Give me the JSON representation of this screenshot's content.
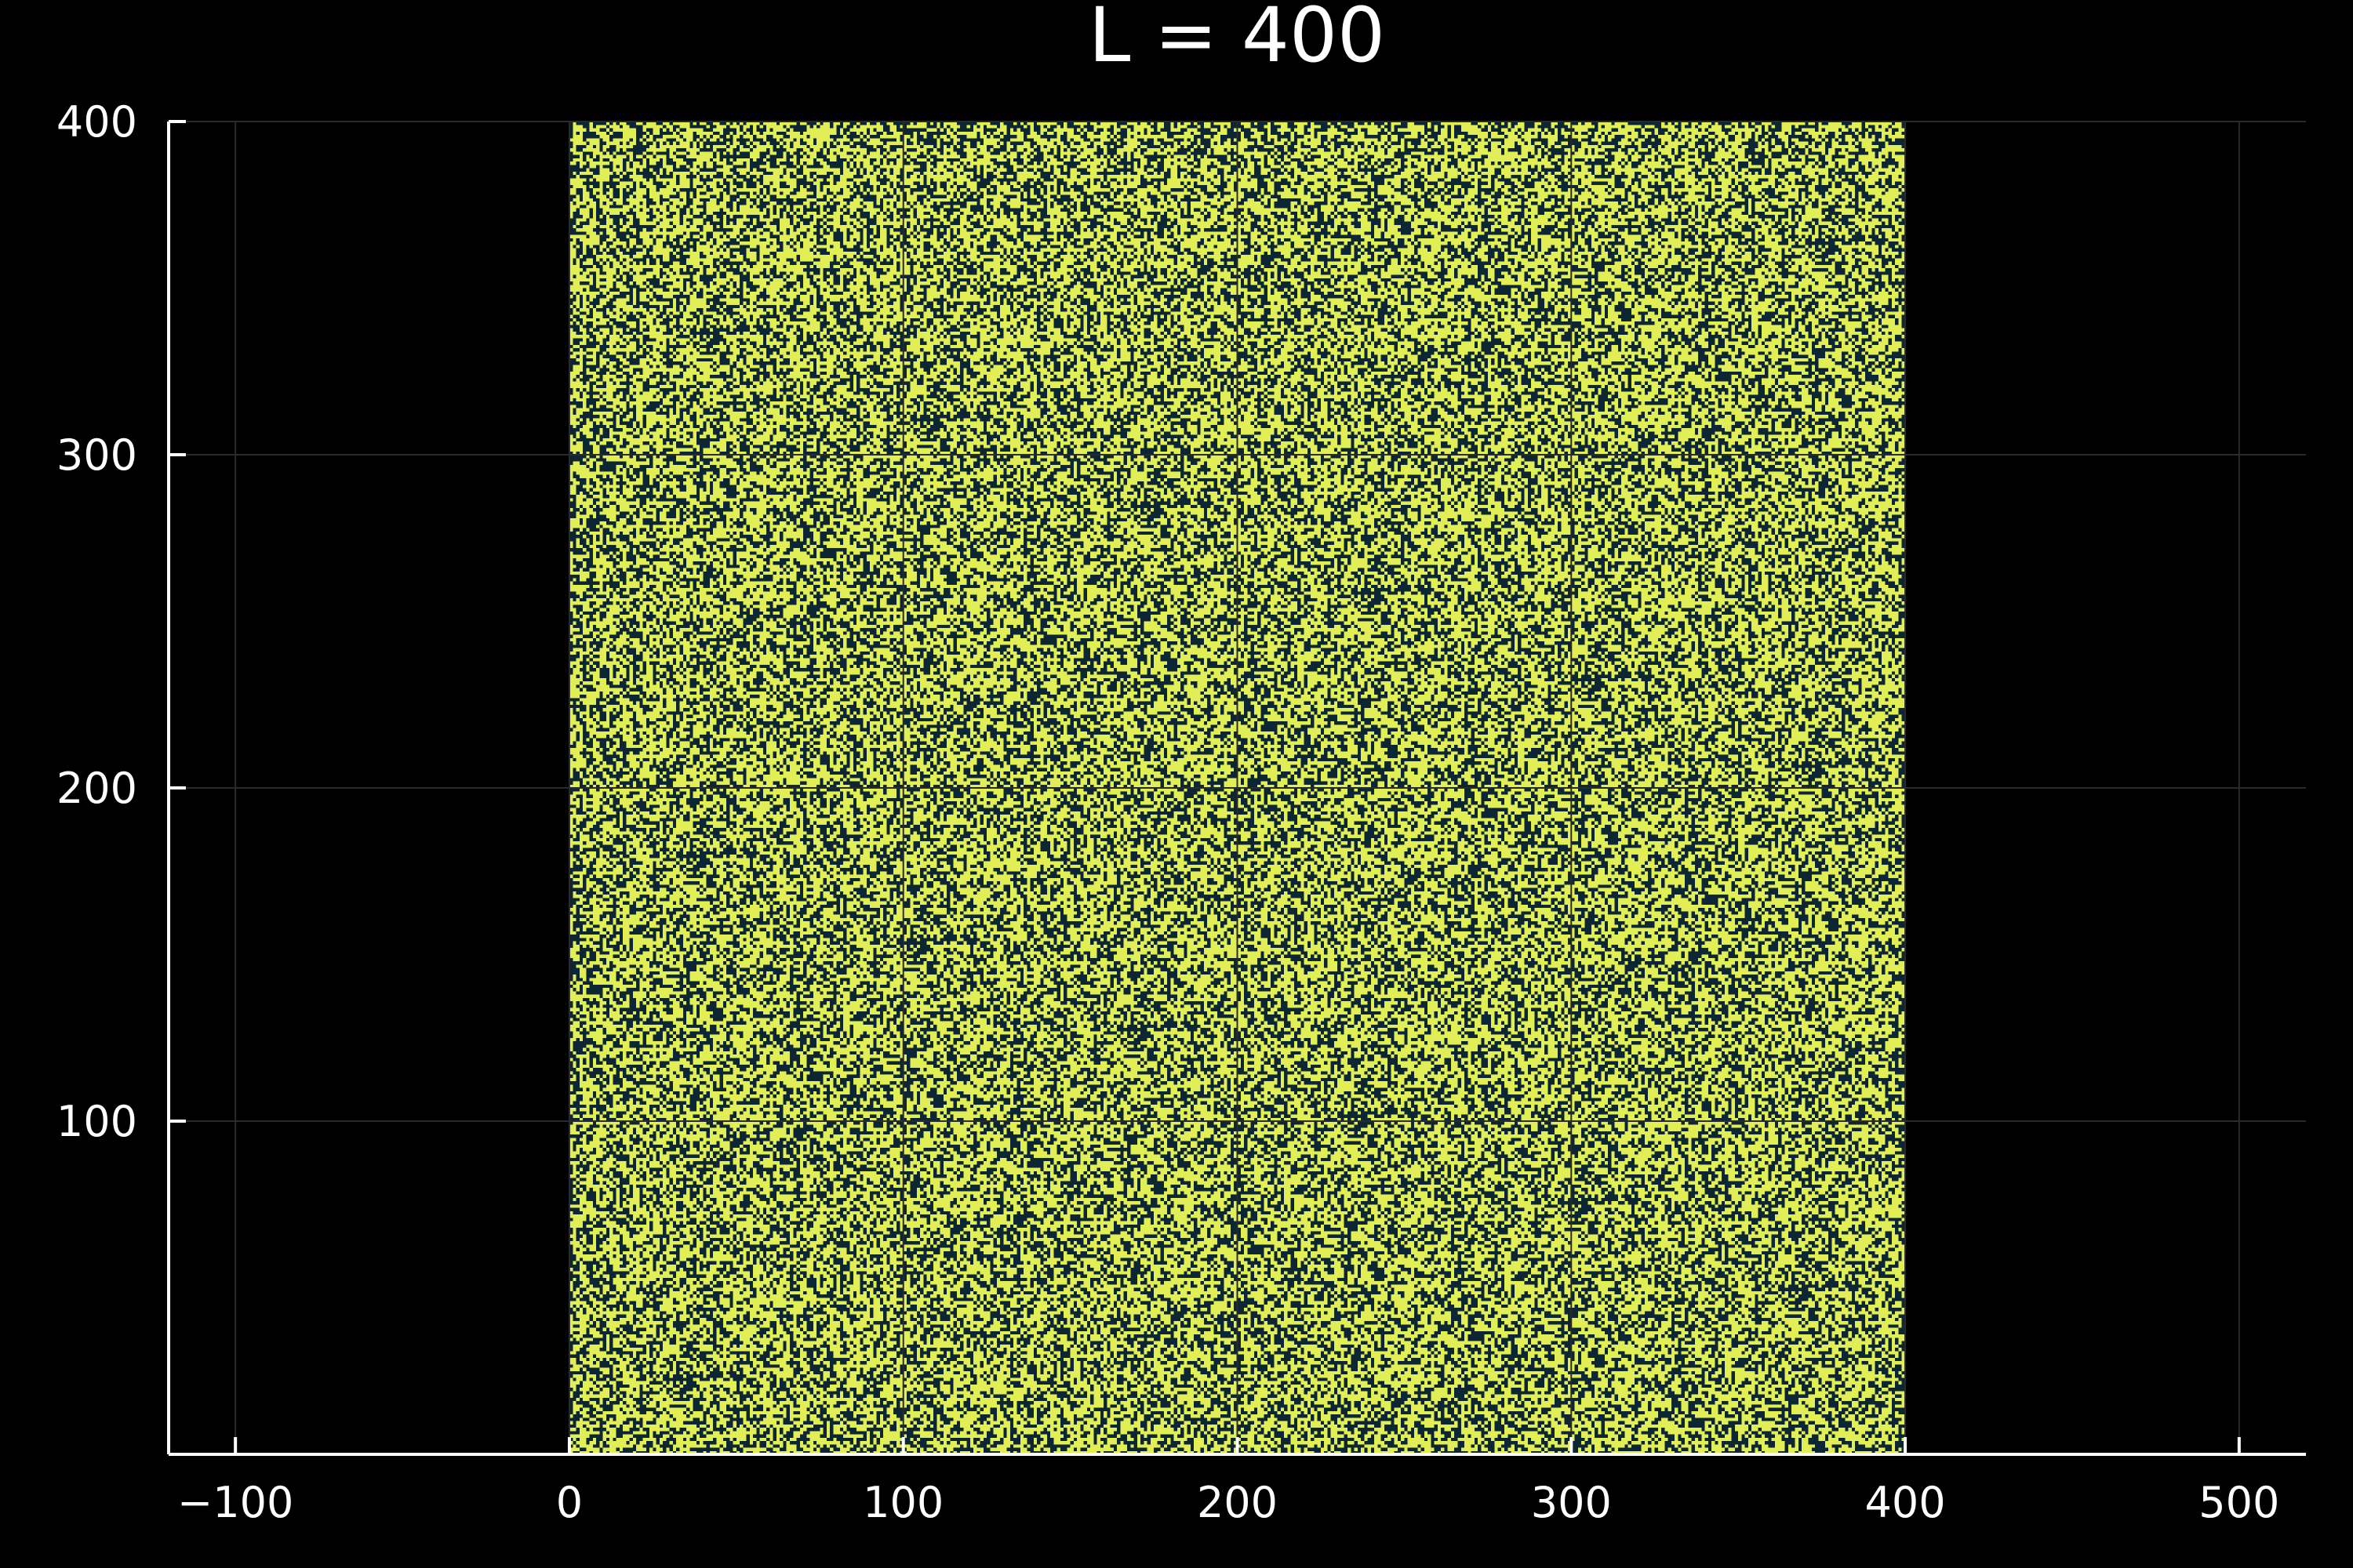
{
  "chart_data": {
    "type": "heatmap",
    "title": "L = 400",
    "xlabel": "",
    "ylabel": "",
    "lattice_size": 400,
    "occupied_fraction": 0.55,
    "xlim": [
      -120,
      520
    ],
    "ylim": [
      0,
      400
    ],
    "x_ticks": [
      -100,
      0,
      100,
      200,
      300,
      400,
      500
    ],
    "y_ticks": [
      100,
      200,
      300,
      400
    ],
    "x_tick_labels": [
      "−100",
      "0",
      "100",
      "200",
      "300",
      "400",
      "500"
    ],
    "y_tick_labels": [
      "100",
      "200",
      "300",
      "400"
    ],
    "grid": true,
    "colors": {
      "background": "#000000",
      "occupied": "#e2ee55",
      "empty": "#0d2633",
      "axis": "#ffffff",
      "grid": "#2a2a2a",
      "text": "#ffffff"
    }
  }
}
